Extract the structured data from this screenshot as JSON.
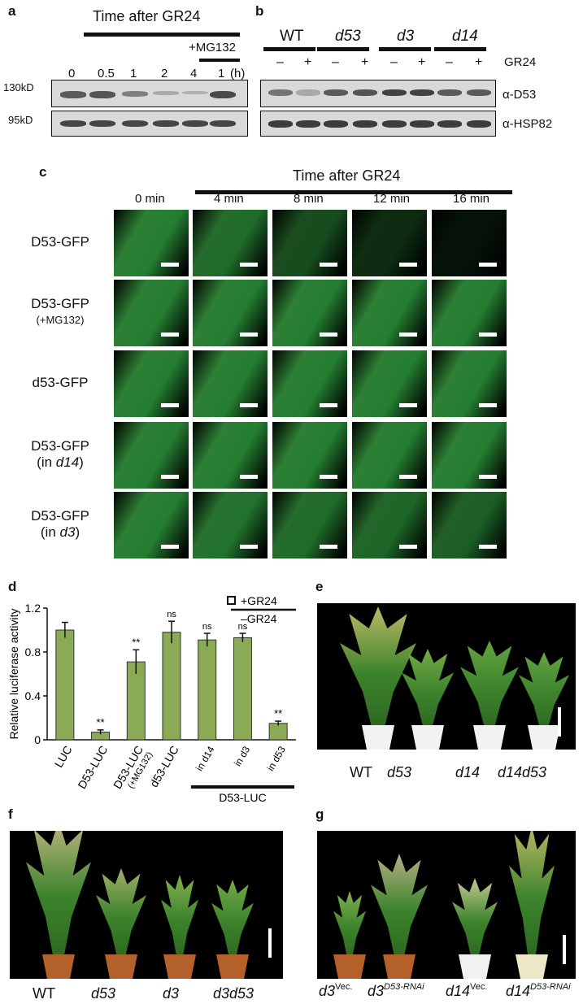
{
  "panels": {
    "a": {
      "label": "a",
      "header": "Time after GR24",
      "mg132": "+MG132",
      "times": [
        "0",
        "0.5",
        "1",
        "2",
        "4",
        "1"
      ],
      "unit": "(h)",
      "markers": [
        "130kD",
        "95kD"
      ]
    },
    "b": {
      "label": "b",
      "genotypes": [
        "WT",
        "d53",
        "d3",
        "d14"
      ],
      "treatments": [
        "–",
        "+",
        "–",
        "+",
        "–",
        "+",
        "–",
        "+"
      ],
      "treatment_label": "GR24",
      "antibodies": [
        "α-D53",
        "α-HSP82"
      ]
    },
    "c": {
      "label": "c",
      "header": "Time after GR24",
      "timepoints": [
        "0 min",
        "4 min",
        "8 min",
        "12 min",
        "16 min"
      ],
      "rows": [
        {
          "line1": "D53-GFP",
          "line2": "",
          "line2b": "",
          "fade": [
            1.0,
            0.85,
            0.6,
            0.35,
            0.15
          ]
        },
        {
          "line1": "D53-GFP",
          "line2": "(+MG132)",
          "line2b": "",
          "fade": [
            1.0,
            1.0,
            1.0,
            1.0,
            1.0
          ]
        },
        {
          "line1": "d53-GFP",
          "line2": "",
          "line2b": "",
          "fade": [
            1.0,
            1.0,
            1.0,
            1.0,
            1.0
          ]
        },
        {
          "line1": "D53-GFP",
          "line2": "(in ",
          "line2b": "d14",
          "fade": [
            1.0,
            1.0,
            1.0,
            1.0,
            1.0
          ]
        },
        {
          "line1": "D53-GFP",
          "line2": "(in ",
          "line2b": "d3",
          "fade": [
            1.0,
            0.9,
            0.85,
            0.8,
            0.75
          ]
        }
      ]
    },
    "d": {
      "label": "d"
    },
    "e": {
      "label": "e",
      "genotypes": [
        "WT",
        "d53",
        "d14",
        "d14d53"
      ]
    },
    "f": {
      "label": "f",
      "genotypes": [
        "WT",
        "d53",
        "d3",
        "d3d53"
      ]
    },
    "g": {
      "label": "g",
      "genotypes": [
        {
          "base": "d3",
          "sup": "Vec."
        },
        {
          "base": "d3",
          "sup": "D53-RNAi"
        },
        {
          "base": "d14",
          "sup": "Vec."
        },
        {
          "base": "d14",
          "sup": "D53-RNAi"
        }
      ]
    }
  },
  "chart_data": {
    "type": "bar",
    "ylabel": "Relative luciferase activity",
    "ylim": [
      0,
      1.2
    ],
    "yticks": [
      "0",
      "0.4",
      "0.8",
      "1.2"
    ],
    "legend": [
      "+GR24",
      "–GR24"
    ],
    "categories": [
      "LUC",
      "D53-LUC",
      "D53-LUC\n(+MG132)",
      "d53-LUC",
      "in d14",
      "in d3",
      "in d53"
    ],
    "group_label": "D53-LUC",
    "values": [
      1.0,
      0.07,
      0.71,
      0.98,
      0.91,
      0.93,
      0.15
    ],
    "errors": [
      0.07,
      0.02,
      0.11,
      0.1,
      0.06,
      0.04,
      0.02
    ],
    "significance": [
      "",
      "**",
      "**",
      "ns",
      "ns",
      "ns",
      "**"
    ],
    "bar_color": "#8aaa55"
  }
}
